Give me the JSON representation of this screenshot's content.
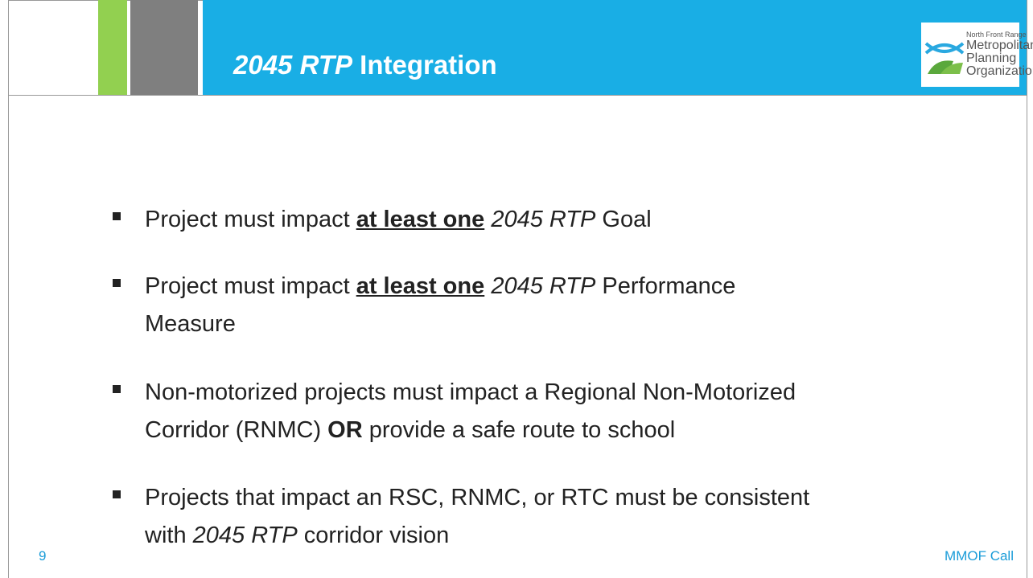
{
  "header": {
    "title": [
      {
        "text": "2045 RTP",
        "style": "italic"
      },
      {
        "text": " Integration",
        "style": "normal"
      }
    ],
    "logo": [
      "North Front Range",
      "Metropolitan",
      "Planning",
      "Organization"
    ]
  },
  "bullets": [
    [
      [
        {
          "text": "Project must impact ",
          "style": "normal"
        },
        {
          "text": "at least one",
          "style": "bold-underline"
        },
        {
          "text": " ",
          "style": "normal"
        },
        {
          "text": "2045 RTP",
          "style": "italic"
        },
        {
          "text": " Goal",
          "style": "normal"
        }
      ]
    ],
    [
      [
        {
          "text": "Project must impact ",
          "style": "normal"
        },
        {
          "text": "at least one",
          "style": "bold-underline"
        },
        {
          "text": " ",
          "style": "normal"
        },
        {
          "text": "2045 RTP",
          "style": "italic"
        },
        {
          "text": " Performance",
          "style": "normal"
        }
      ],
      [
        {
          "text": "Measure",
          "style": "normal"
        }
      ]
    ],
    [
      [
        {
          "text": "Non-motorized projects must impact a Regional Non-Motorized",
          "style": "normal"
        }
      ],
      [
        {
          "text": "Corridor (RNMC) ",
          "style": "normal"
        },
        {
          "text": "OR",
          "style": "bold"
        },
        {
          "text": " provide a safe route to school",
          "style": "normal"
        }
      ]
    ],
    [
      [
        {
          "text": "Projects that impact an RSC, RNMC, or RTC must be consistent",
          "style": "normal"
        }
      ],
      [
        {
          "text": "with ",
          "style": "normal"
        },
        {
          "text": "2045 RTP",
          "style": "italic"
        },
        {
          "text": " corridor vision",
          "style": "normal"
        }
      ]
    ]
  ],
  "footer": {
    "page": "9",
    "label": "MMOF Call"
  }
}
